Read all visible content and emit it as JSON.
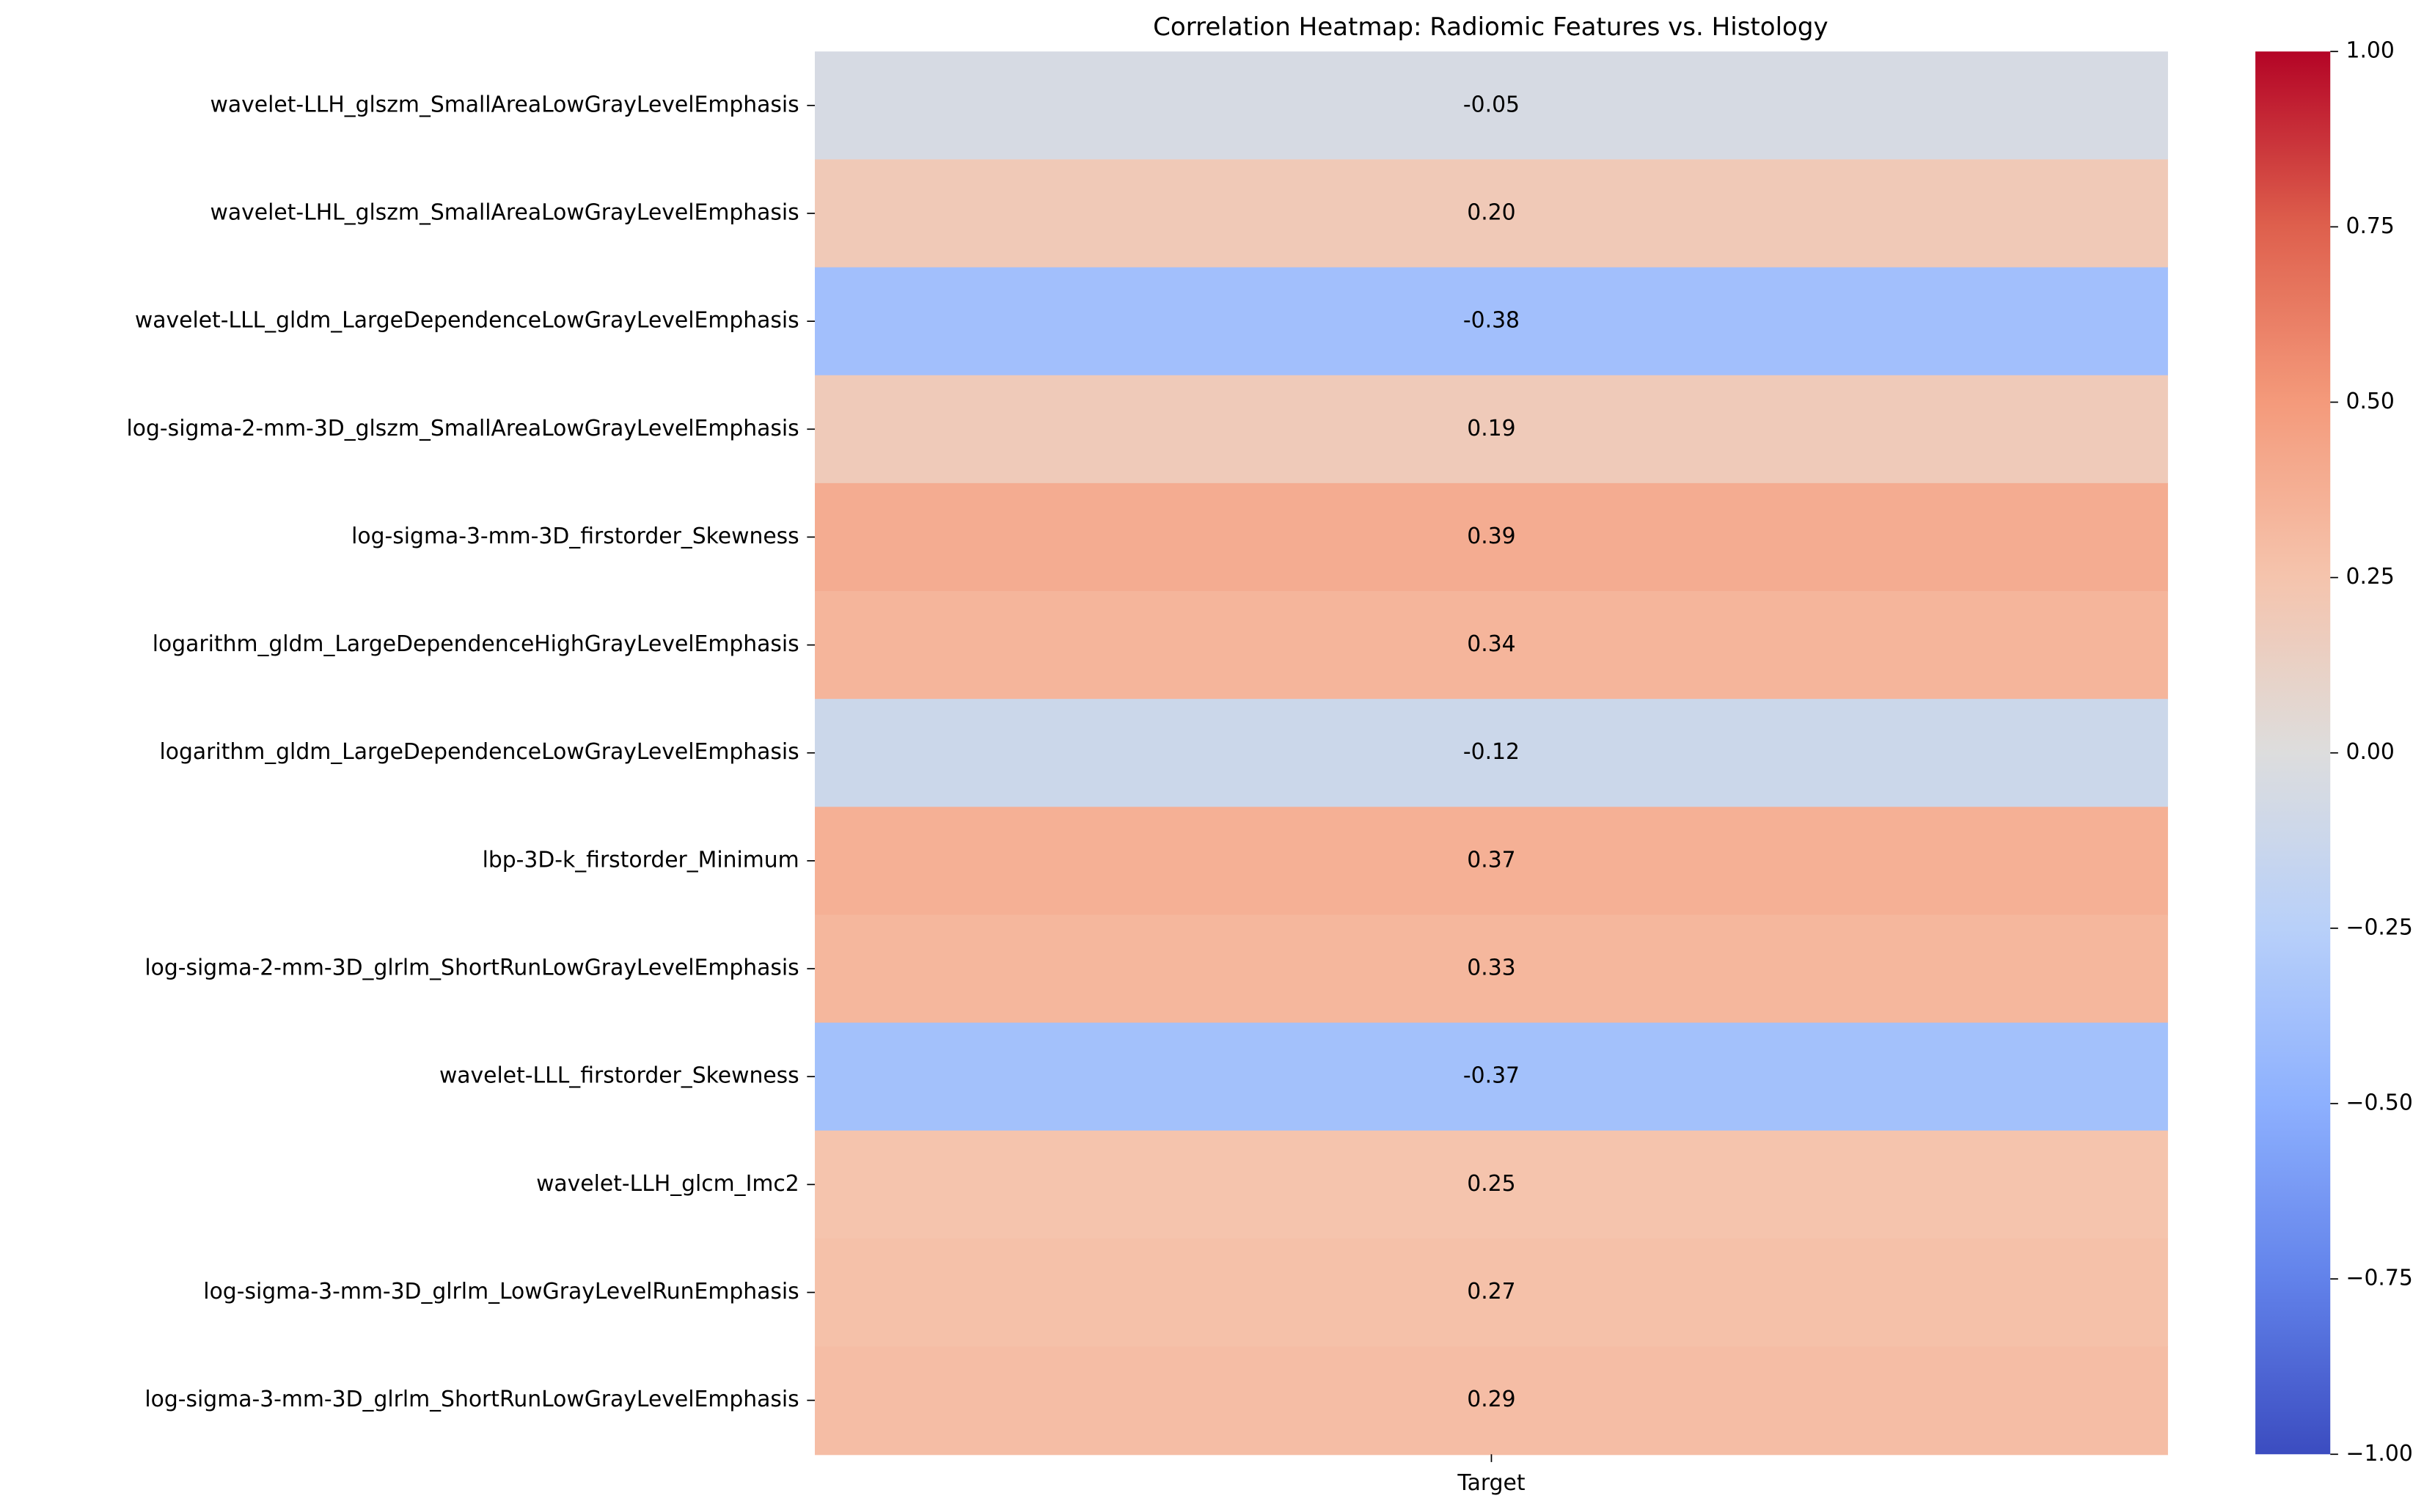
{
  "chart_data": {
    "type": "heatmap",
    "title": "Correlation Heatmap: Radiomic Features vs. Histology",
    "categories": [
      "wavelet-LLH_glszm_SmallAreaLowGrayLevelEmphasis",
      "wavelet-LHL_glszm_SmallAreaLowGrayLevelEmphasis",
      "wavelet-LLL_gldm_LargeDependenceLowGrayLevelEmphasis",
      "log-sigma-2-mm-3D_glszm_SmallAreaLowGrayLevelEmphasis",
      "log-sigma-3-mm-3D_firstorder_Skewness",
      "logarithm_gldm_LargeDependenceHighGrayLevelEmphasis",
      "logarithm_gldm_LargeDependenceLowGrayLevelEmphasis",
      "lbp-3D-k_firstorder_Minimum",
      "log-sigma-2-mm-3D_glrlm_ShortRunLowGrayLevelEmphasis",
      "wavelet-LLL_firstorder_Skewness",
      "wavelet-LLH_glcm_Imc2",
      "log-sigma-3-mm-3D_glrlm_LowGrayLevelRunEmphasis",
      "log-sigma-3-mm-3D_glrlm_ShortRunLowGrayLevelEmphasis"
    ],
    "columns": [
      "Target"
    ],
    "values": [
      -0.05,
      0.2,
      -0.38,
      0.19,
      0.39,
      0.34,
      -0.12,
      0.37,
      0.33,
      -0.37,
      0.25,
      0.27,
      0.29
    ],
    "value_labels": [
      "-0.05",
      "0.20",
      "-0.38",
      "0.19",
      "0.39",
      "0.34",
      "-0.12",
      "0.37",
      "0.33",
      "-0.37",
      "0.25",
      "0.27",
      "0.29"
    ],
    "colormap": "coolwarm",
    "clim": [
      -1,
      1
    ],
    "cticks": [
      {
        "value": -1,
        "label": "−1.00"
      },
      {
        "value": -0.75,
        "label": "−0.75"
      },
      {
        "value": -0.5,
        "label": "−0.50"
      },
      {
        "value": -0.25,
        "label": "−0.25"
      },
      {
        "value": 0,
        "label": "0.00"
      },
      {
        "value": 0.25,
        "label": "0.25"
      },
      {
        "value": 0.5,
        "label": "0.50"
      },
      {
        "value": 0.75,
        "label": "0.75"
      },
      {
        "value": 1,
        "label": "1.00"
      }
    ]
  }
}
